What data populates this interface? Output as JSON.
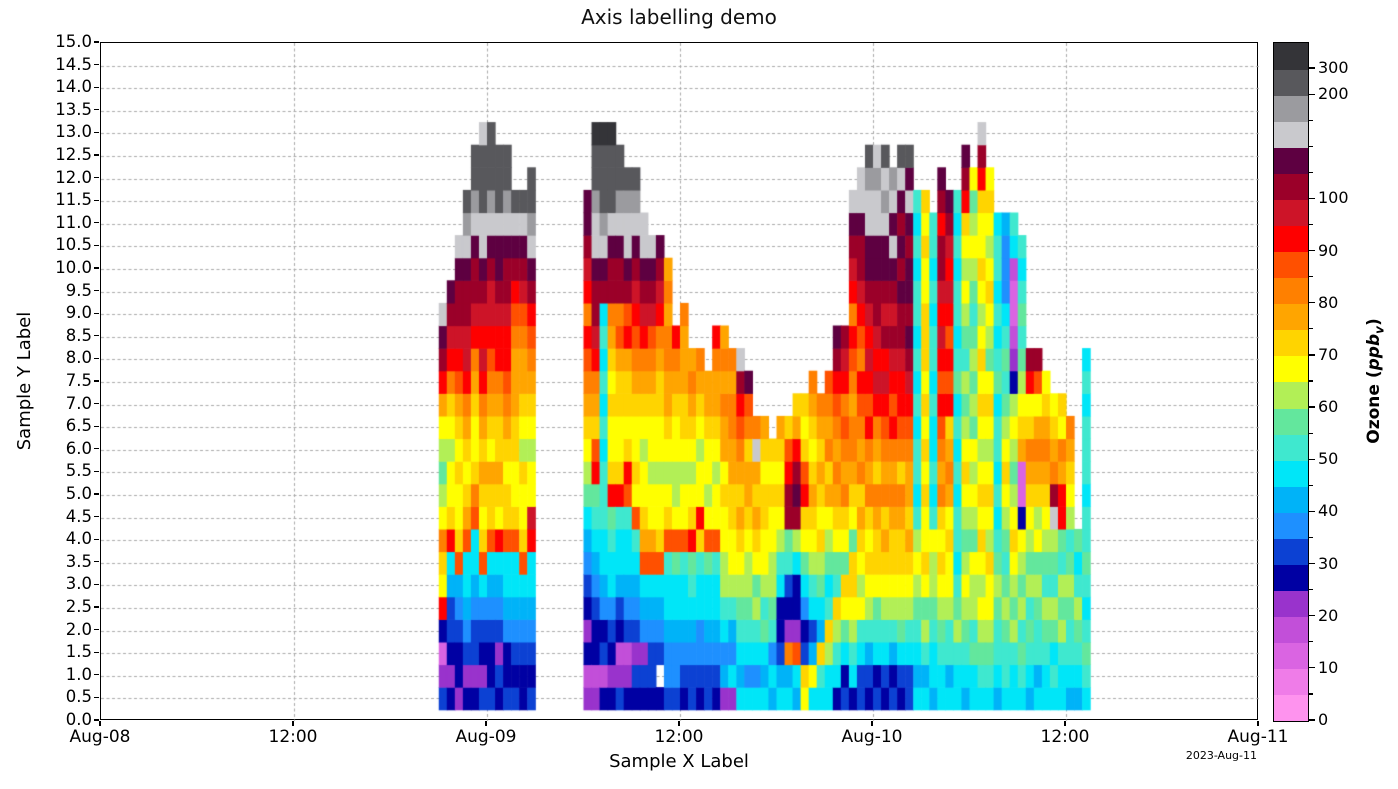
{
  "title": "Axis labelling demo",
  "xlabel": "Sample X Label",
  "ylabel": "Sample Y Label",
  "corner_date": "2023-Aug-11",
  "colorbar": {
    "label_bold_start": "Ozone (",
    "label_italic": "ppb",
    "label_subscript": "v",
    "label_bold_end": ")",
    "tick_labels": [
      {
        "label": "0",
        "b": 0
      },
      {
        "label": "10",
        "b": 2
      },
      {
        "label": "20",
        "b": 4
      },
      {
        "label": "30",
        "b": 6
      },
      {
        "label": "40",
        "b": 8
      },
      {
        "label": "50",
        "b": 10
      },
      {
        "label": "60",
        "b": 12
      },
      {
        "label": "70",
        "b": 14
      },
      {
        "label": "80",
        "b": 16
      },
      {
        "label": "90",
        "b": 18
      },
      {
        "label": "100",
        "b": 20
      },
      {
        "label": "200",
        "b": 24
      },
      {
        "label": "300",
        "b": 25
      }
    ]
  },
  "chart_data": {
    "type": "heatmap",
    "title": "Axis labelling demo",
    "xlabel": "Sample X Label",
    "ylabel": "Sample Y Label",
    "x_range": [
      "Aug-08 00:00",
      "Aug-11 00:00"
    ],
    "x_tick_labels": [
      "Aug-08",
      "12:00",
      "Aug-09",
      "12:00",
      "Aug-10",
      "12:00",
      "Aug-11"
    ],
    "x_tick_hours": [
      0,
      12,
      24,
      36,
      48,
      60,
      72
    ],
    "y_range_km": [
      0.0,
      15.0
    ],
    "y_tick_step_km": 0.5,
    "y_tick_labels": [
      "15.0",
      "14.5",
      "14.0",
      "13.5",
      "13.0",
      "12.5",
      "12.0",
      "11.5",
      "11.0",
      "10.5",
      "10.0",
      "9.5",
      "9.0",
      "8.5",
      "8.0",
      "7.5",
      "7.0",
      "6.5",
      "6.0",
      "5.5",
      "5.0",
      "4.5",
      "4.0",
      "3.5",
      "3.0",
      "2.5",
      "2.0",
      "1.5",
      "1.0",
      "0.5",
      "0.0"
    ],
    "grid_dashed": true,
    "value_label": "Ozone (ppbv)",
    "value_band_edges_ppb": [
      0,
      5,
      10,
      15,
      20,
      25,
      30,
      35,
      40,
      45,
      50,
      55,
      60,
      65,
      70,
      75,
      80,
      85,
      90,
      95,
      100,
      125,
      150,
      175,
      200,
      300,
      600
    ],
    "palette_order": "abcdefghijklmnopqrstuvwxyz",
    "palette": {
      "a": "#fe93ee",
      "b": "#ef7ce8",
      "c": "#da64e2",
      "d": "#c24fd9",
      "e": "#9933cc",
      "f": "#0000a3",
      "g": "#0c41d3",
      "h": "#1e90ff",
      "i": "#00b3f8",
      "j": "#00e6f8",
      "k": "#3fe8cf",
      "l": "#63e79d",
      "m": "#b2ef56",
      "n": "#ffff00",
      "o": "#ffd400",
      "p": "#ffa500",
      "q": "#ff8000",
      "r": "#ff5000",
      "s": "#fe0000",
      "t": "#cd1428",
      "u": "#9b0029",
      "v": "#5e0041",
      "w": "#c9c9cd",
      "x": "#9b9b9f",
      "y": "#58585c",
      "z": "#343438"
    },
    "grid": {
      "hours_per_col": 0.5,
      "total_cols": 144,
      "km_per_row": 0.5,
      "alt_offset_km": 0.25,
      "blocks": [
        {
          "start_col": 42,
          "columns": [
            "gecfsnoqnmlmnpsuvw",
            "fefggijsonnmnoqstuv",
            "effghironnonoprstuuvw",
            "feghijjrponopqsttuuvwxy",
            "fegghijjrqonnopqstuuvwxyy",
            "gefghjronopopqststuvwwyyyw",
            "gffghijroopnopqrsttuvwxyyy",
            "fgeghijsnopoopqsstuvvwyyy",
            "gffhijjroonopqrsstuuvwxyy",
            "gfghijjronnoopppqrsuvwy",
            "ffghijronnomnoppqrtuvwy",
            "gfghijjstnnmnopqrsuvwxyy"
          ]
        },
        {
          "start_col": 60,
          "columns": [
            "edfefghijlmnopqrsqstuvv",
            "edffghijklsropqstuuvwwxyyz",
            "fdgfhijjkkkjkjkjkjuvwxyyyz",
            "fefghjjklsonnonopquuvwyyyz",
            "gedfgijjksonnooprquuvwxyy",
            "fedghijjkrsonoopsruvwwxy",
            "fgeghijkrnonnopqrstuvwxy",
            "fgehijrponnmnopqstuvww",
            "fgghijrpnnmnnopqrtuvw",
            "f.ghijronnmnnoopqstuv",
            "ghhijjkronmnoppqqpqp",
            "ghhijjlrnmmnnopqs",
            "fghijjkrnnmnoopppq",
            "gghijklsonmnopqp",
            "fghhjjkosnnmnopq",
            "gghijjlrnmnnopp",
            "fghijjkrnnmnoppqs"
          ]
        },
        {
          "start_col": 77,
          "columns": [
            "eihjkmmnnonppqpqp",
            "ejhikmnnooppqqpq",
            "jijklmnopopqrsuw",
            "jhjklmmnoppoqrv",
            "jhjkmlnopopwq",
            "jijlkmnnoonop",
            "ijhklmmnnono",
            "jigffjkmnonop",
            "jiqefgkluusro",
            "ijreffjmuvuspo",
            "nogfhjlnosrono",
            "jnigjkmnoponopq",
            "jkoijlmonopopq",
            "jjmokjlmnpoqpqr",
            "fjkmoklnopqpqrsuv",
            "gfjlnolnoqpqrqstu",
            "fjkmnoolnopqqpqrsqstuvw",
            "ggjknmnopoqpqrsqrstuuvww",
            "fgikmnonoqpqsrststuvvwwxy",
            "gfjklnoopqopqststuuvvwwxw",
            "fgjkmnopoqpqrstsutuvvwxwy",
            "gfikmnoopqpqsrstutuvwvwx",
            "fgjlmnoopqoqrsstuuvuvuvwy",
            "ggjkmnopoppqrstuvuvvuvwvy",
            "jijklmnmkjkkjkjkjkkjkjk",
            "jikmlnonnonononooonnono",
            "ijjklmmnkjkjjkjkkjkjkk",
            "jjklmnonoqpqrsrststuusuv",
            "jikkmnnonpqposrsrststuv",
            "jjkmlkjkkjkjkjlkjkkjkjk",
            "ijklmnmlmnonmlmklmnmnosuv",
            "jjlkmmnlmnmnlmlmlklmnmln",
            "jklmnmnononmnononmnonnosuw",
            "jklmnnomnonmnonlmnonmnon",
            "ijkklmlkjkjkkjlkjkjkkj",
            "jkklmlklmnonmlklkjhhhi",
            "jjkmlmnonmlmnmfedccdjk",
            "jklkmlmnfccponmlklkjk",
            "ijklkmlmnopqonsu",
            "jikklmlnmopqpnru",
            "jjklmklmnopqpon",
            "jkjlmklmwuqpon",
            "jjkmlmklsspqno",
            "ijkklmlkmnopq",
            "ijklmkjl",
            "jklkjklkkjkkkjkj"
          ]
        }
      ]
    }
  }
}
